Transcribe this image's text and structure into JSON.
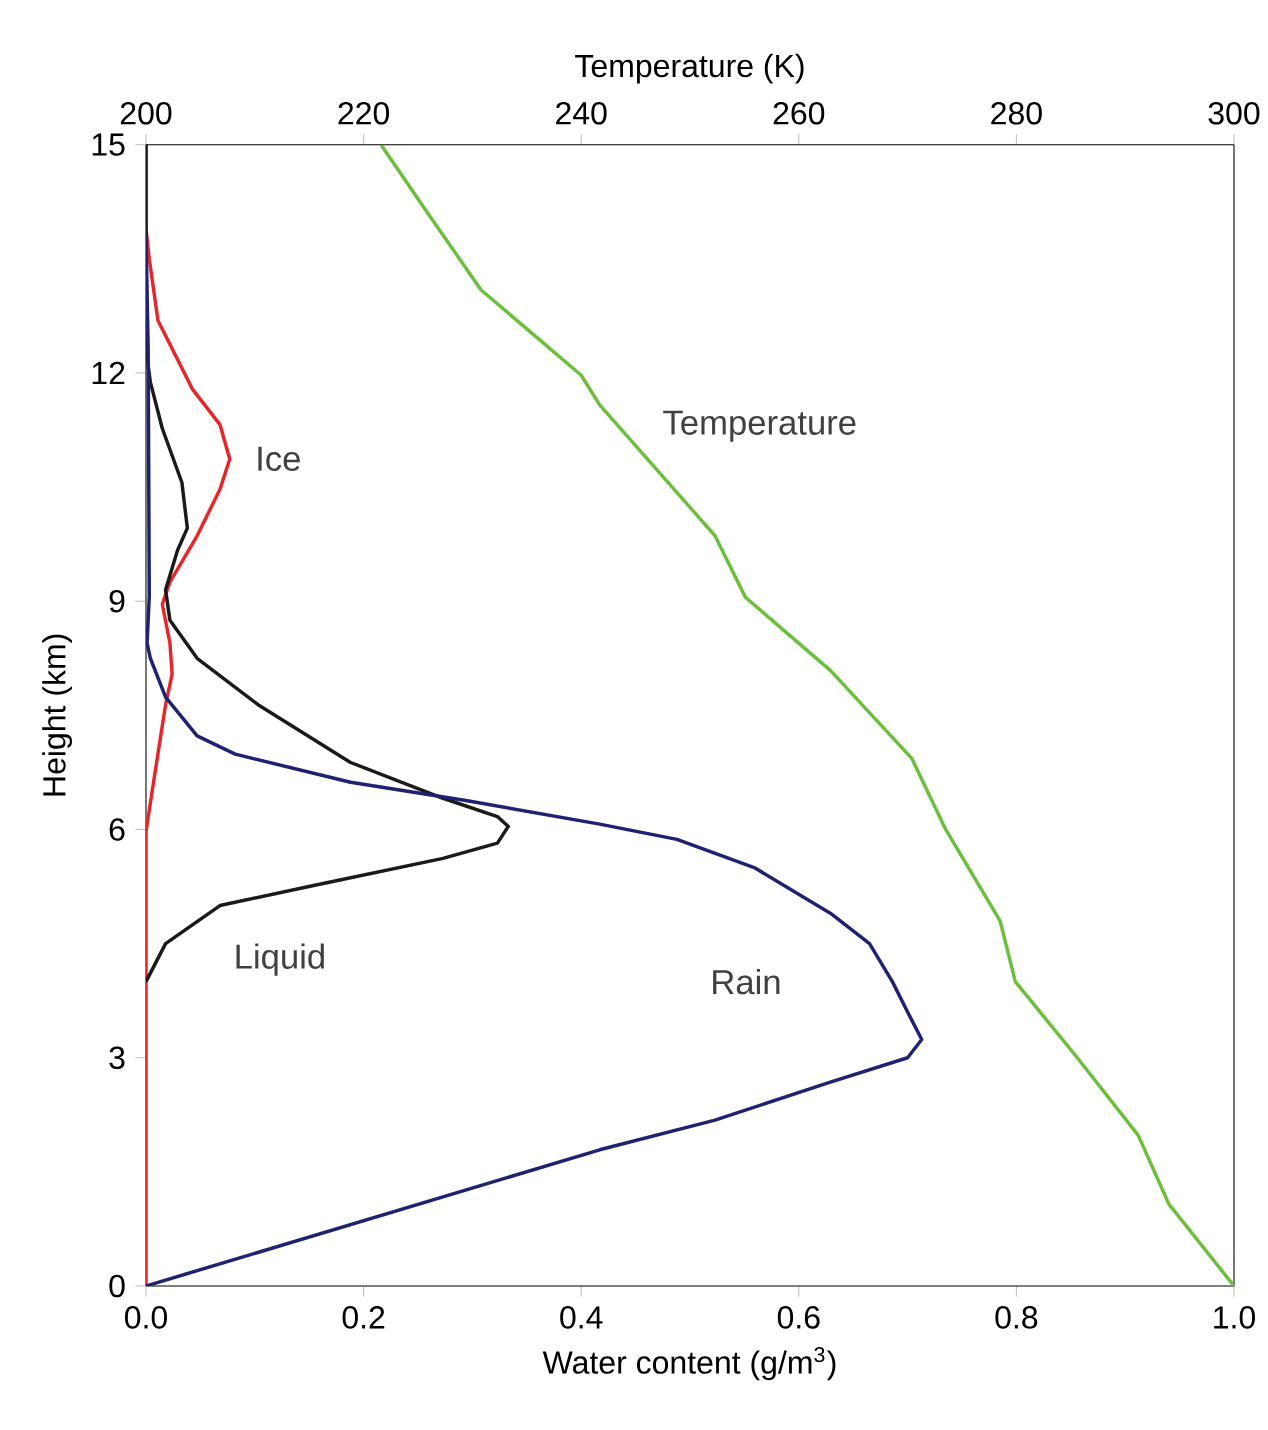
{
  "chart_data": {
    "type": "line",
    "xlabel": "Water content (g/m$^{3}$)",
    "ylabel": "Height (km)",
    "x2label": "Temperature (K)",
    "xlim": [
      0,
      1
    ],
    "ylim": [
      0,
      15
    ],
    "x2lim": [
      200,
      300
    ],
    "xticks": [
      {
        "value": 0,
        "label": "0.0"
      },
      {
        "value": 0.2,
        "label": "0.2"
      },
      {
        "value": 0.4,
        "label": "0.4"
      },
      {
        "value": 0.6,
        "label": "0.6"
      },
      {
        "value": 0.8,
        "label": "0.8"
      },
      {
        "value": 1,
        "label": "1.0"
      }
    ],
    "yticks": [
      0,
      3,
      6,
      9,
      12,
      15
    ],
    "x2ticks": [
      200,
      220,
      240,
      260,
      280,
      300
    ],
    "series": [
      {
        "name": "Ice",
        "color": "#e8262a",
        "x": [
          0,
          0,
          0.008,
          0.018,
          0.024,
          0.022,
          0.015,
          0.022,
          0.047,
          0.068,
          0.077,
          0.068,
          0.043,
          0.011,
          0.003,
          0,
          0
        ],
        "values": [
          0,
          5.97,
          6.72,
          7.64,
          8.04,
          8.45,
          8.96,
          9.25,
          9.86,
          10.47,
          10.87,
          11.32,
          11.78,
          12.69,
          13.5,
          13.9,
          15
        ]
      },
      {
        "name": "Liquid",
        "color": "#1a1a1a",
        "x": [
          0,
          0.018,
          0.068,
          0.153,
          0.273,
          0.323,
          0.333,
          0.323,
          0.273,
          0.188,
          0.103,
          0.047,
          0.022,
          0.018,
          0.029,
          0.038,
          0.033,
          0.015,
          0.004,
          0,
          0
        ],
        "values": [
          4.0,
          4.5,
          5.0,
          5.26,
          5.62,
          5.82,
          6.04,
          6.17,
          6.41,
          6.88,
          7.64,
          8.25,
          8.75,
          9.15,
          9.67,
          9.96,
          10.56,
          11.27,
          11.88,
          12.3,
          15
        ]
      },
      {
        "name": "Rain",
        "color": "#1f2270",
        "x": [
          0,
          0.417,
          0.523,
          0.629,
          0.7,
          0.713,
          0.7,
          0.686,
          0.665,
          0.629,
          0.559,
          0.488,
          0.417,
          0.294,
          0.188,
          0.082,
          0.047,
          0.018,
          0.004,
          0.001,
          0.003,
          0.002,
          0
        ],
        "values": [
          0,
          1.79,
          2.18,
          2.68,
          3.0,
          3.24,
          3.6,
          4.0,
          4.5,
          4.9,
          5.5,
          5.87,
          6.07,
          6.38,
          6.62,
          6.99,
          7.23,
          7.74,
          8.25,
          8.45,
          9.06,
          12.3,
          13.8
        ]
      },
      {
        "name": "Temperature",
        "color": "#6cbf3c",
        "axis": "x2",
        "x": [
          300,
          294.0,
          291.2,
          285.6,
          279.9,
          278.5,
          273.5,
          270.4,
          262.9,
          255.1,
          252.3,
          241.7,
          240.0,
          230.8,
          225.9,
          221.6
        ],
        "values": [
          0,
          1.08,
          1.98,
          3.0,
          4.0,
          4.8,
          6.0,
          6.93,
          8.09,
          9.05,
          9.86,
          11.58,
          11.97,
          13.09,
          14.1,
          15.0
        ]
      }
    ]
  }
}
